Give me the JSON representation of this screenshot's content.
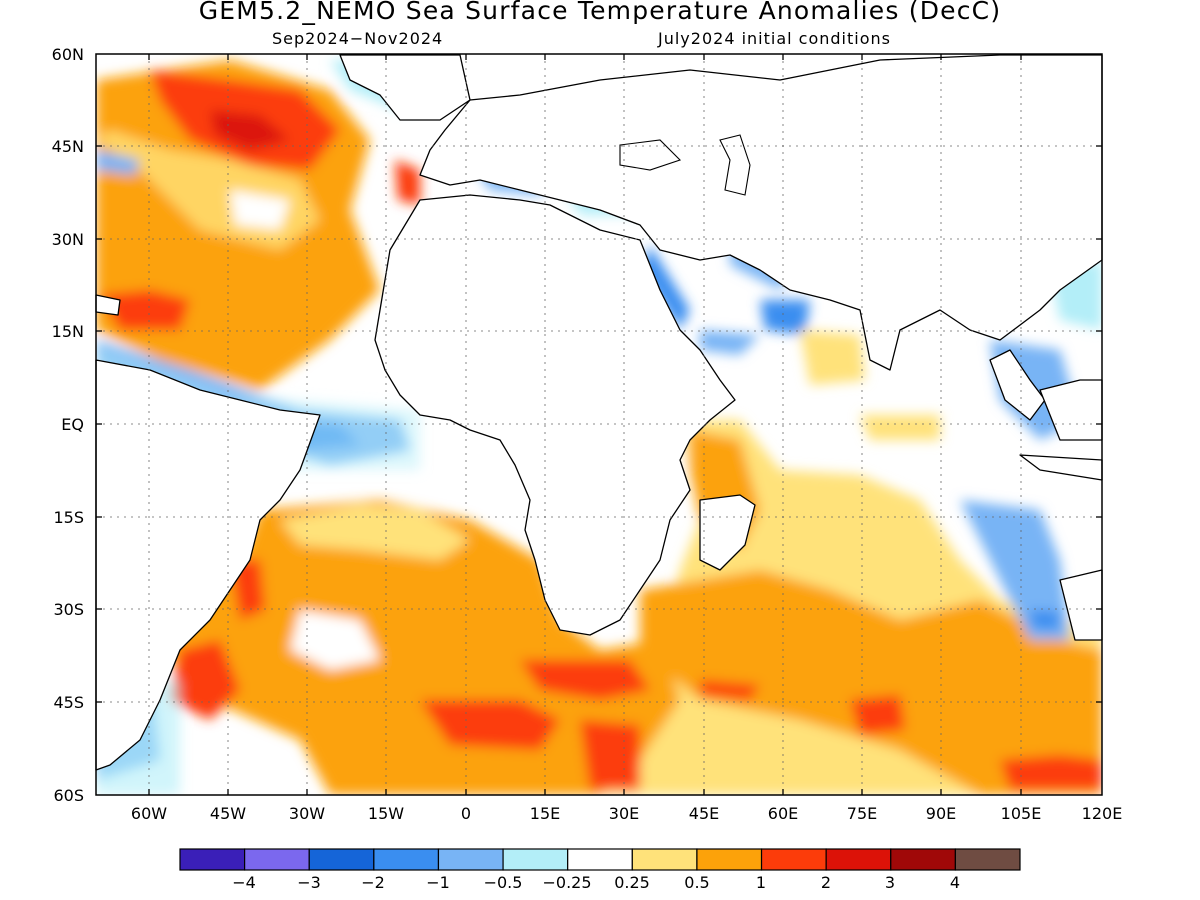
{
  "title": "GEM5.2_NEMO Sea Surface Temperature Anomalies (DecC)",
  "subtitle_left": "Sep2024−Nov2024",
  "subtitle_right": "July2024 initial conditions",
  "lon_labels": [
    "60W",
    "45W",
    "30W",
    "15W",
    "0",
    "15E",
    "30E",
    "45E",
    "60E",
    "75E",
    "90E",
    "105E",
    "120E"
  ],
  "lat_labels": [
    "60N",
    "45N",
    "30N",
    "15N",
    "EQ",
    "15S",
    "30S",
    "45S",
    "60S"
  ],
  "colorbar": {
    "colors": [
      "#3a1fb8",
      "#7b68ee",
      "#1565d8",
      "#3a8ef0",
      "#78b4f5",
      "#b3eef8",
      "#ffffff",
      "#ffe27a",
      "#fca20a",
      "#fc3c0a",
      "#dc1208",
      "#a00808",
      "#6f4c42"
    ],
    "labels": [
      "−4",
      "−3",
      "−2",
      "−1",
      "−0.5",
      "−0.25",
      "0.25",
      "0.5",
      "1",
      "2",
      "3",
      "4"
    ]
  },
  "legend_mapping": {
    "blue_tones": "negative anomalies",
    "orange_red_tones": "positive anomalies"
  }
}
